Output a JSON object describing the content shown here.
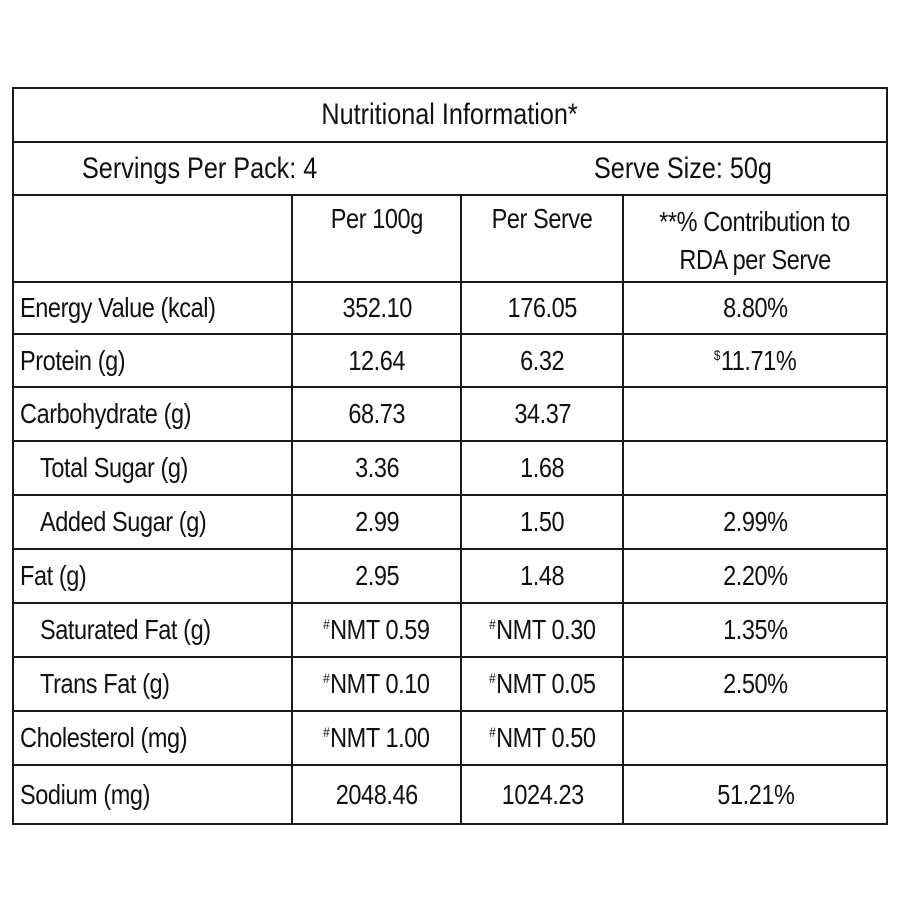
{
  "title": "Nutritional Information*",
  "servings_per_pack": "Servings Per Pack: 4",
  "serve_size": "Serve Size: 50g",
  "columns": {
    "nutrient": "",
    "per_100g": "Per 100g",
    "per_serve": "Per Serve",
    "rda_line1": "**% Contribution to",
    "rda_line2": "RDA per Serve"
  },
  "rows": [
    {
      "nutrient": "Energy Value (kcal)",
      "indent": false,
      "per_100g_mark": "",
      "per_100g": "352.10",
      "per_serve_mark": "",
      "per_serve": "176.05",
      "rda_mark": "",
      "rda": "8.80%"
    },
    {
      "nutrient": "Protein (g)",
      "indent": false,
      "per_100g_mark": "",
      "per_100g": "12.64",
      "per_serve_mark": "",
      "per_serve": "6.32",
      "rda_mark": "$",
      "rda": "11.71%"
    },
    {
      "nutrient": "Carbohydrate (g)",
      "indent": false,
      "per_100g_mark": "",
      "per_100g": "68.73",
      "per_serve_mark": "",
      "per_serve": "34.37",
      "rda_mark": "",
      "rda": ""
    },
    {
      "nutrient": "Total Sugar (g)",
      "indent": true,
      "per_100g_mark": "",
      "per_100g": "3.36",
      "per_serve_mark": "",
      "per_serve": "1.68",
      "rda_mark": "",
      "rda": ""
    },
    {
      "nutrient": "Added Sugar (g)",
      "indent": true,
      "per_100g_mark": "",
      "per_100g": "2.99",
      "per_serve_mark": "",
      "per_serve": "1.50",
      "rda_mark": "",
      "rda": "2.99%"
    },
    {
      "nutrient": "Fat (g)",
      "indent": false,
      "per_100g_mark": "",
      "per_100g": "2.95",
      "per_serve_mark": "",
      "per_serve": "1.48",
      "rda_mark": "",
      "rda": "2.20%"
    },
    {
      "nutrient": "Saturated Fat (g)",
      "indent": true,
      "per_100g_mark": "#",
      "per_100g": "NMT 0.59",
      "per_serve_mark": "#",
      "per_serve": "NMT 0.30",
      "rda_mark": "",
      "rda": "1.35%"
    },
    {
      "nutrient": "Trans Fat (g)",
      "indent": true,
      "per_100g_mark": "#",
      "per_100g": "NMT 0.10",
      "per_serve_mark": "#",
      "per_serve": "NMT 0.05",
      "rda_mark": "",
      "rda": "2.50%"
    },
    {
      "nutrient": "Cholesterol (mg)",
      "indent": false,
      "per_100g_mark": "#",
      "per_100g": "NMT 1.00",
      "per_serve_mark": "#",
      "per_serve": "NMT 0.50",
      "rda_mark": "",
      "rda": ""
    },
    {
      "nutrient": "Sodium (mg)",
      "indent": false,
      "per_100g_mark": "",
      "per_100g": "2048.46",
      "per_serve_mark": "",
      "per_serve": "1024.23",
      "rda_mark": "",
      "rda": "51.21%"
    }
  ]
}
